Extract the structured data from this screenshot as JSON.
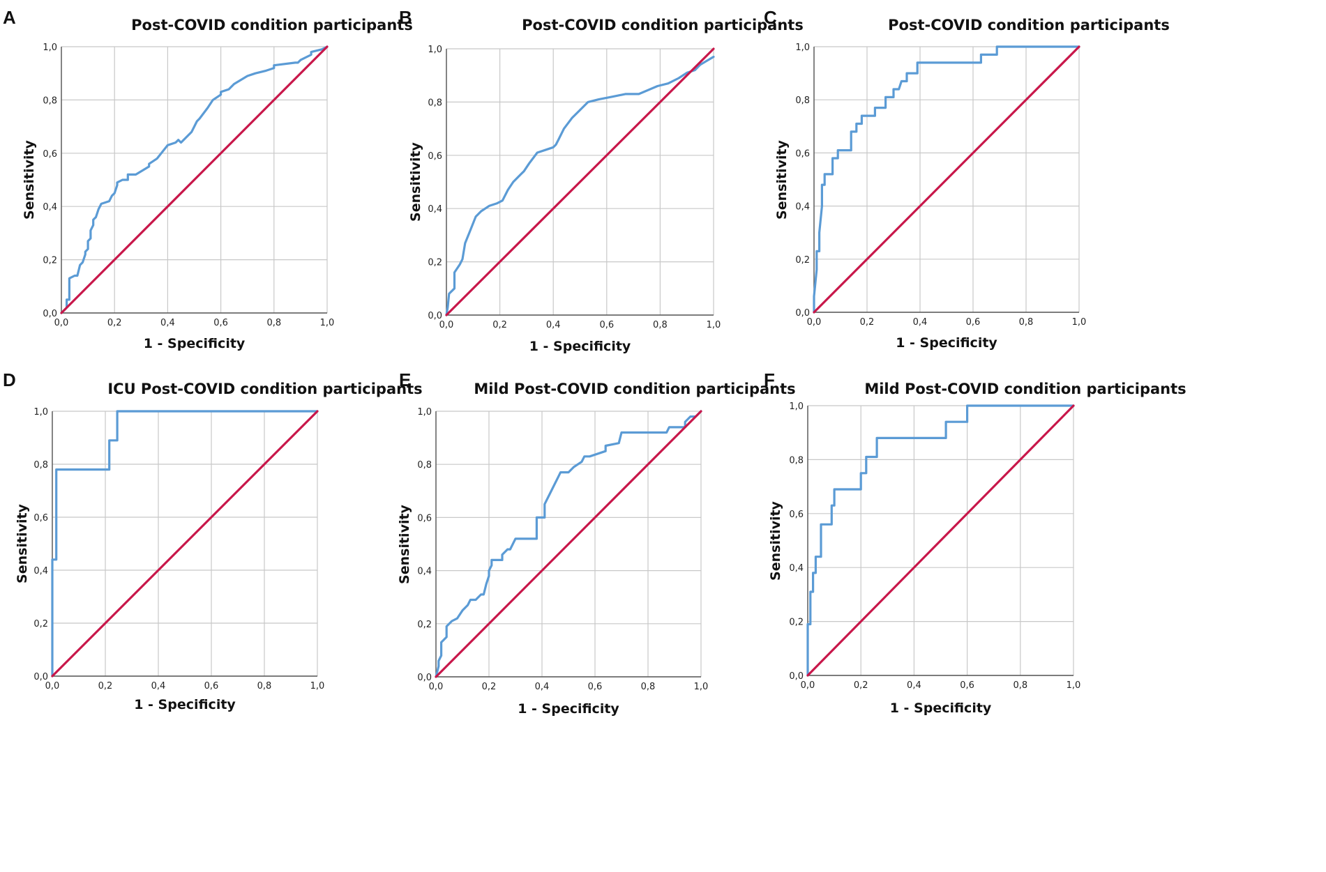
{
  "colors": {
    "roc": "#5b9bd5",
    "reference": "#c8174a",
    "grid": "#c8c8c8",
    "axis": "#555555"
  },
  "chart_data": [
    {
      "panel": "A",
      "type": "line",
      "title": "Post-COVID condition participants",
      "xlabel": "1 - Specificity",
      "ylabel": "Sensitivity",
      "xlim": [
        0,
        1
      ],
      "ylim": [
        0,
        1
      ],
      "xticks": [
        "0,0",
        "0,2",
        "0,4",
        "0,6",
        "0,8",
        "1,0"
      ],
      "yticks": [
        "0,0",
        "0,2",
        "0,4",
        "0,6",
        "0,8",
        "1,0"
      ],
      "grid": true,
      "series": [
        {
          "name": "ROC curve",
          "x": [
            0,
            0.01,
            0.02,
            0.02,
            0.03,
            0.03,
            0.05,
            0.05,
            0.06,
            0.07,
            0.08,
            0.09,
            0.09,
            0.1,
            0.1,
            0.11,
            0.11,
            0.12,
            0.12,
            0.13,
            0.14,
            0.15,
            0.18,
            0.19,
            0.2,
            0.21,
            0.21,
            0.23,
            0.25,
            0.25,
            0.26,
            0.28,
            0.33,
            0.33,
            0.36,
            0.4,
            0.43,
            0.44,
            0.45,
            0.47,
            0.49,
            0.5,
            0.51,
            0.52,
            0.55,
            0.57,
            0.6,
            0.6,
            0.63,
            0.65,
            0.7,
            0.73,
            0.77,
            0.8,
            0.8,
            0.88,
            0.89,
            0.9,
            0.94,
            0.94,
            0.98,
            1.0
          ],
          "y": [
            0,
            0.01,
            0.02,
            0.05,
            0.05,
            0.13,
            0.14,
            0.14,
            0.14,
            0.18,
            0.19,
            0.22,
            0.23,
            0.24,
            0.27,
            0.28,
            0.31,
            0.33,
            0.35,
            0.36,
            0.39,
            0.41,
            0.42,
            0.44,
            0.45,
            0.48,
            0.49,
            0.5,
            0.5,
            0.52,
            0.52,
            0.52,
            0.55,
            0.56,
            0.58,
            0.63,
            0.64,
            0.65,
            0.64,
            0.66,
            0.68,
            0.7,
            0.72,
            0.73,
            0.77,
            0.8,
            0.82,
            0.83,
            0.84,
            0.86,
            0.89,
            0.9,
            0.91,
            0.92,
            0.93,
            0.94,
            0.94,
            0.95,
            0.97,
            0.98,
            0.99,
            1.0
          ]
        },
        {
          "name": "Reference line",
          "x": [
            0,
            1
          ],
          "y": [
            0,
            1
          ]
        }
      ]
    },
    {
      "panel": "B",
      "type": "line",
      "title": "Post-COVID condition participants",
      "xlabel": "1 - Specificity",
      "ylabel": "Sensitivity",
      "xlim": [
        0,
        1
      ],
      "ylim": [
        0,
        1
      ],
      "xticks": [
        "0,0",
        "0,2",
        "0,4",
        "0,6",
        "0,8",
        "1,0"
      ],
      "yticks": [
        "0,0",
        "0,2",
        "0,4",
        "0,6",
        "0,8",
        "1,0"
      ],
      "grid": true,
      "series": [
        {
          "name": "ROC curve",
          "x": [
            0,
            0.005,
            0.01,
            0.03,
            0.03,
            0.05,
            0.06,
            0.07,
            0.09,
            0.11,
            0.13,
            0.16,
            0.19,
            0.21,
            0.23,
            0.25,
            0.28,
            0.29,
            0.31,
            0.34,
            0.37,
            0.4,
            0.41,
            0.42,
            0.44,
            0.47,
            0.5,
            0.53,
            0.57,
            0.62,
            0.67,
            0.72,
            0.79,
            0.83,
            0.87,
            0.9,
            0.93,
            0.95,
            1.0
          ],
          "y": [
            0,
            0.03,
            0.08,
            0.1,
            0.16,
            0.19,
            0.21,
            0.27,
            0.32,
            0.37,
            0.39,
            0.41,
            0.42,
            0.43,
            0.47,
            0.5,
            0.53,
            0.54,
            0.57,
            0.61,
            0.62,
            0.63,
            0.64,
            0.66,
            0.7,
            0.74,
            0.77,
            0.8,
            0.81,
            0.82,
            0.83,
            0.83,
            0.86,
            0.87,
            0.89,
            0.91,
            0.92,
            0.94,
            0.97
          ]
        },
        {
          "name": "Reference line",
          "x": [
            0,
            1
          ],
          "y": [
            0,
            1
          ]
        }
      ]
    },
    {
      "panel": "C",
      "type": "line",
      "title": "Post-COVID condition participants",
      "xlabel": "1 - Specificity",
      "ylabel": "Sensitivity",
      "xlim": [
        0,
        1
      ],
      "ylim": [
        0,
        1
      ],
      "xticks": [
        "0,0",
        "0,2",
        "0,4",
        "0,6",
        "0,8",
        "1,0"
      ],
      "yticks": [
        "0,0",
        "0,2",
        "0,4",
        "0,6",
        "0,8",
        "1,0"
      ],
      "grid": true,
      "series": [
        {
          "name": "ROC curve",
          "x": [
            0,
            0,
            0.01,
            0.01,
            0.02,
            0.02,
            0.03,
            0.03,
            0.04,
            0.04,
            0.06,
            0.07,
            0.07,
            0.09,
            0.09,
            0.13,
            0.14,
            0.14,
            0.16,
            0.16,
            0.18,
            0.18,
            0.23,
            0.23,
            0.27,
            0.27,
            0.3,
            0.3,
            0.32,
            0.33,
            0.35,
            0.35,
            0.39,
            0.39,
            0.43,
            0.43,
            0.63,
            0.63,
            0.69,
            0.69,
            0.72,
            0.72,
            1.0
          ],
          "y": [
            0,
            0.06,
            0.16,
            0.23,
            0.23,
            0.3,
            0.4,
            0.48,
            0.48,
            0.52,
            0.52,
            0.52,
            0.58,
            0.58,
            0.61,
            0.61,
            0.61,
            0.68,
            0.68,
            0.71,
            0.71,
            0.74,
            0.74,
            0.77,
            0.77,
            0.81,
            0.81,
            0.84,
            0.84,
            0.87,
            0.87,
            0.9,
            0.9,
            0.94,
            0.94,
            0.94,
            0.94,
            0.97,
            0.97,
            1.0,
            1.0,
            1.0,
            1.0
          ]
        },
        {
          "name": "Reference line",
          "x": [
            0,
            1
          ],
          "y": [
            0,
            1
          ]
        }
      ]
    },
    {
      "panel": "D",
      "type": "line",
      "title": "ICU Post-COVID condition participants",
      "xlabel": "1 - Specificity",
      "ylabel": "Sensitivity",
      "xlim": [
        0,
        1
      ],
      "ylim": [
        0,
        1
      ],
      "xticks": [
        "0,0",
        "0,2",
        "0,4",
        "0,6",
        "0,8",
        "1,0"
      ],
      "yticks": [
        "0,0",
        "0,2",
        "0,4",
        "0,6",
        "0,8",
        "1,0"
      ],
      "grid": true,
      "series": [
        {
          "name": "ROC curve",
          "x": [
            0,
            0,
            0.015,
            0.015,
            0.215,
            0.215,
            0.245,
            0.245,
            1.0
          ],
          "y": [
            0,
            0.44,
            0.44,
            0.78,
            0.78,
            0.89,
            0.89,
            1.0,
            1.0
          ]
        },
        {
          "name": "Reference line",
          "x": [
            0,
            1
          ],
          "y": [
            0,
            1
          ]
        }
      ]
    },
    {
      "panel": "E",
      "type": "line",
      "title": "Mild Post-COVID condition participants",
      "xlabel": "1 - Specificity",
      "ylabel": "Sensitivity",
      "xlim": [
        0,
        1
      ],
      "ylim": [
        0,
        1
      ],
      "xticks": [
        "0,0",
        "0,2",
        "0,4",
        "0,6",
        "0,8",
        "1,0"
      ],
      "yticks": [
        "0,0",
        "0,2",
        "0,4",
        "0,6",
        "0,8",
        "1,0"
      ],
      "grid": true,
      "series": [
        {
          "name": "ROC curve",
          "x": [
            0,
            0.005,
            0.01,
            0.01,
            0.02,
            0.02,
            0.04,
            0.04,
            0.06,
            0.08,
            0.1,
            0.12,
            0.13,
            0.15,
            0.17,
            0.18,
            0.19,
            0.2,
            0.2,
            0.21,
            0.21,
            0.25,
            0.25,
            0.27,
            0.28,
            0.29,
            0.3,
            0.3,
            0.32,
            0.38,
            0.38,
            0.41,
            0.41,
            0.43,
            0.44,
            0.45,
            0.46,
            0.47,
            0.48,
            0.5,
            0.52,
            0.55,
            0.56,
            0.57,
            0.58,
            0.64,
            0.64,
            0.69,
            0.7,
            0.87,
            0.88,
            0.94,
            0.94,
            0.96,
            0.98,
            1.0
          ],
          "y": [
            0,
            0.02,
            0.04,
            0.06,
            0.08,
            0.13,
            0.15,
            0.19,
            0.21,
            0.22,
            0.25,
            0.27,
            0.29,
            0.29,
            0.31,
            0.31,
            0.35,
            0.38,
            0.4,
            0.42,
            0.44,
            0.44,
            0.46,
            0.48,
            0.48,
            0.5,
            0.52,
            0.52,
            0.52,
            0.52,
            0.6,
            0.6,
            0.65,
            0.69,
            0.71,
            0.73,
            0.75,
            0.77,
            0.77,
            0.77,
            0.79,
            0.81,
            0.83,
            0.83,
            0.83,
            0.85,
            0.87,
            0.88,
            0.92,
            0.92,
            0.94,
            0.94,
            0.96,
            0.98,
            0.98,
            1.0
          ]
        },
        {
          "name": "Reference line",
          "x": [
            0,
            1
          ],
          "y": [
            0,
            1
          ]
        }
      ]
    },
    {
      "panel": "F",
      "type": "line",
      "title": "Mild Post-COVID condition participants",
      "xlabel": "1 - Specificity",
      "ylabel": "Sensitivity",
      "xlim": [
        0,
        1
      ],
      "ylim": [
        0,
        1
      ],
      "xticks": [
        "0,0",
        "0,2",
        "0,4",
        "0,6",
        "0,8",
        "1,0"
      ],
      "yticks": [
        "0,0",
        "0,2",
        "0,4",
        "0,6",
        "0,8",
        "1,0"
      ],
      "grid": true,
      "series": [
        {
          "name": "ROC curve",
          "x": [
            0,
            0,
            0.01,
            0.01,
            0.02,
            0.02,
            0.03,
            0.03,
            0.05,
            0.05,
            0.09,
            0.09,
            0.1,
            0.1,
            0.2,
            0.2,
            0.22,
            0.22,
            0.26,
            0.26,
            0.52,
            0.52,
            0.6,
            0.6,
            1.0
          ],
          "y": [
            0,
            0.19,
            0.19,
            0.31,
            0.31,
            0.38,
            0.38,
            0.44,
            0.44,
            0.56,
            0.56,
            0.63,
            0.63,
            0.69,
            0.69,
            0.75,
            0.75,
            0.81,
            0.81,
            0.88,
            0.88,
            0.94,
            0.94,
            1.0,
            1.0
          ]
        },
        {
          "name": "Reference line",
          "x": [
            0,
            1
          ],
          "y": [
            0,
            1
          ]
        }
      ]
    }
  ]
}
